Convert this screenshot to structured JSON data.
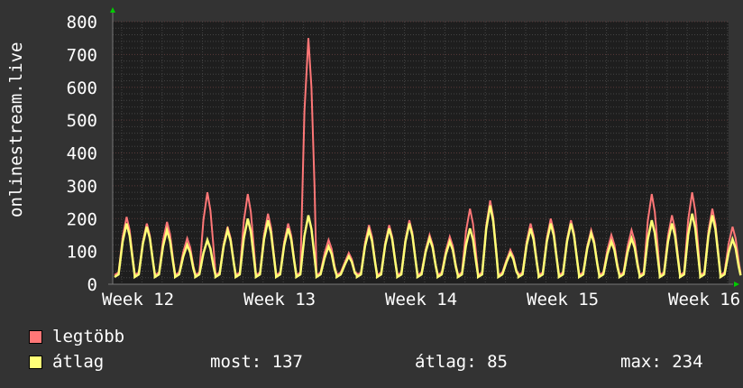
{
  "chart_data": {
    "type": "line",
    "ylabel": "onlinestream.live",
    "ylim": [
      0,
      800
    ],
    "yticks": [
      0,
      100,
      200,
      300,
      400,
      500,
      600,
      700,
      800
    ],
    "xtick_labels": [
      "Week 12",
      "Week 13",
      "Week 14",
      "Week 15",
      "Week 16"
    ],
    "grid": true,
    "background": "#1e1e1e",
    "colors": {
      "legtobb": "#ff7777",
      "atlag": "#ffff77"
    },
    "series": [
      {
        "name": "legtöbb",
        "daily_peaks": [
          205,
          185,
          190,
          140,
          280,
          175,
          275,
          215,
          185,
          750,
          135,
          95,
          180,
          180,
          195,
          150,
          145,
          230,
          255,
          105,
          185,
          200,
          195,
          165,
          150,
          165,
          275,
          210,
          280,
          230,
          175
        ]
      },
      {
        "name": "átlag",
        "daily_peaks": [
          185,
          175,
          165,
          120,
          135,
          165,
          200,
          195,
          170,
          210,
          115,
          85,
          165,
          170,
          185,
          140,
          130,
          170,
          240,
          95,
          170,
          185,
          185,
          155,
          130,
          140,
          195,
          185,
          215,
          210,
          137
        ]
      }
    ]
  },
  "legend": {
    "items": [
      {
        "label": "legtöbb"
      },
      {
        "label": "átlag"
      }
    ],
    "stats": {
      "most": "most: 137",
      "atlag": "átlag: 85",
      "max": "max: 234"
    }
  }
}
